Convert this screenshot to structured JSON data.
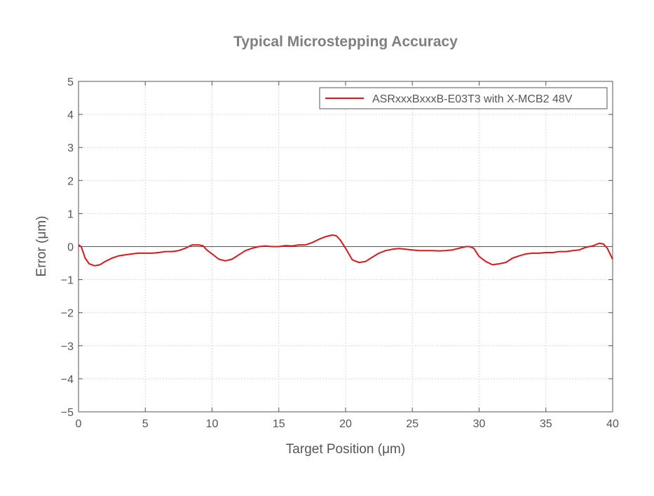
{
  "chart_data": {
    "type": "line",
    "title": "Typical Microstepping Accuracy",
    "xlabel": "Target Position (μm)",
    "ylabel": "Error (μm)",
    "xlim": [
      0,
      40
    ],
    "ylim": [
      -5,
      5
    ],
    "xticks": [
      0,
      5,
      10,
      15,
      20,
      25,
      30,
      35,
      40
    ],
    "yticks": [
      -5,
      -4,
      -3,
      -2,
      -1,
      0,
      1,
      2,
      3,
      4,
      5
    ],
    "xtick_labels": [
      "0",
      "5",
      "10",
      "15",
      "20",
      "25",
      "30",
      "35",
      "40"
    ],
    "ytick_labels": [
      "−5",
      "−4",
      "−3",
      "−2",
      "−1",
      "0",
      "1",
      "2",
      "3",
      "4",
      "5"
    ],
    "grid": true,
    "zero_line": true,
    "legend_position": "top-right",
    "series": [
      {
        "name": "ASRxxxBxxxB-E03T3 with X-MCB2 48V",
        "color": "#d7191c",
        "x": [
          0,
          0.2,
          0.5,
          0.8,
          1.2,
          1.6,
          2.0,
          2.5,
          3.0,
          3.5,
          4.0,
          4.5,
          5.0,
          5.5,
          6.0,
          6.5,
          7.0,
          7.5,
          8.0,
          8.5,
          9.0,
          9.3,
          9.6,
          10.0,
          10.5,
          11.0,
          11.5,
          12.0,
          12.5,
          13.0,
          13.5,
          14.0,
          14.5,
          15.0,
          15.5,
          16.0,
          16.5,
          17.0,
          17.5,
          18.0,
          18.5,
          19.0,
          19.3,
          19.6,
          20.0,
          20.5,
          21.0,
          21.5,
          22.0,
          22.5,
          23.0,
          23.5,
          24.0,
          24.5,
          25.0,
          25.5,
          26.0,
          26.5,
          27.0,
          27.5,
          28.0,
          28.5,
          29.0,
          29.3,
          29.6,
          30.0,
          30.5,
          31.0,
          31.5,
          32.0,
          32.5,
          33.0,
          33.5,
          34.0,
          34.5,
          35.0,
          35.5,
          36.0,
          36.5,
          37.0,
          37.5,
          38.0,
          38.5,
          39.0,
          39.3,
          39.6,
          40.0
        ],
        "y": [
          0.05,
          0.0,
          -0.35,
          -0.52,
          -0.58,
          -0.55,
          -0.45,
          -0.35,
          -0.28,
          -0.25,
          -0.22,
          -0.2,
          -0.2,
          -0.2,
          -0.18,
          -0.15,
          -0.15,
          -0.12,
          -0.05,
          0.05,
          0.05,
          0.03,
          -0.1,
          -0.22,
          -0.38,
          -0.43,
          -0.38,
          -0.25,
          -0.12,
          -0.05,
          0.0,
          0.02,
          0.0,
          0.0,
          0.03,
          0.02,
          0.05,
          0.05,
          0.12,
          0.22,
          0.3,
          0.35,
          0.33,
          0.2,
          -0.05,
          -0.4,
          -0.48,
          -0.45,
          -0.32,
          -0.2,
          -0.12,
          -0.08,
          -0.06,
          -0.08,
          -0.1,
          -0.12,
          -0.12,
          -0.12,
          -0.13,
          -0.12,
          -0.1,
          -0.05,
          0.0,
          0.0,
          -0.05,
          -0.3,
          -0.45,
          -0.55,
          -0.52,
          -0.48,
          -0.35,
          -0.28,
          -0.22,
          -0.2,
          -0.2,
          -0.18,
          -0.18,
          -0.15,
          -0.15,
          -0.12,
          -0.1,
          -0.02,
          0.02,
          0.1,
          0.08,
          -0.05,
          -0.38
        ]
      }
    ]
  }
}
